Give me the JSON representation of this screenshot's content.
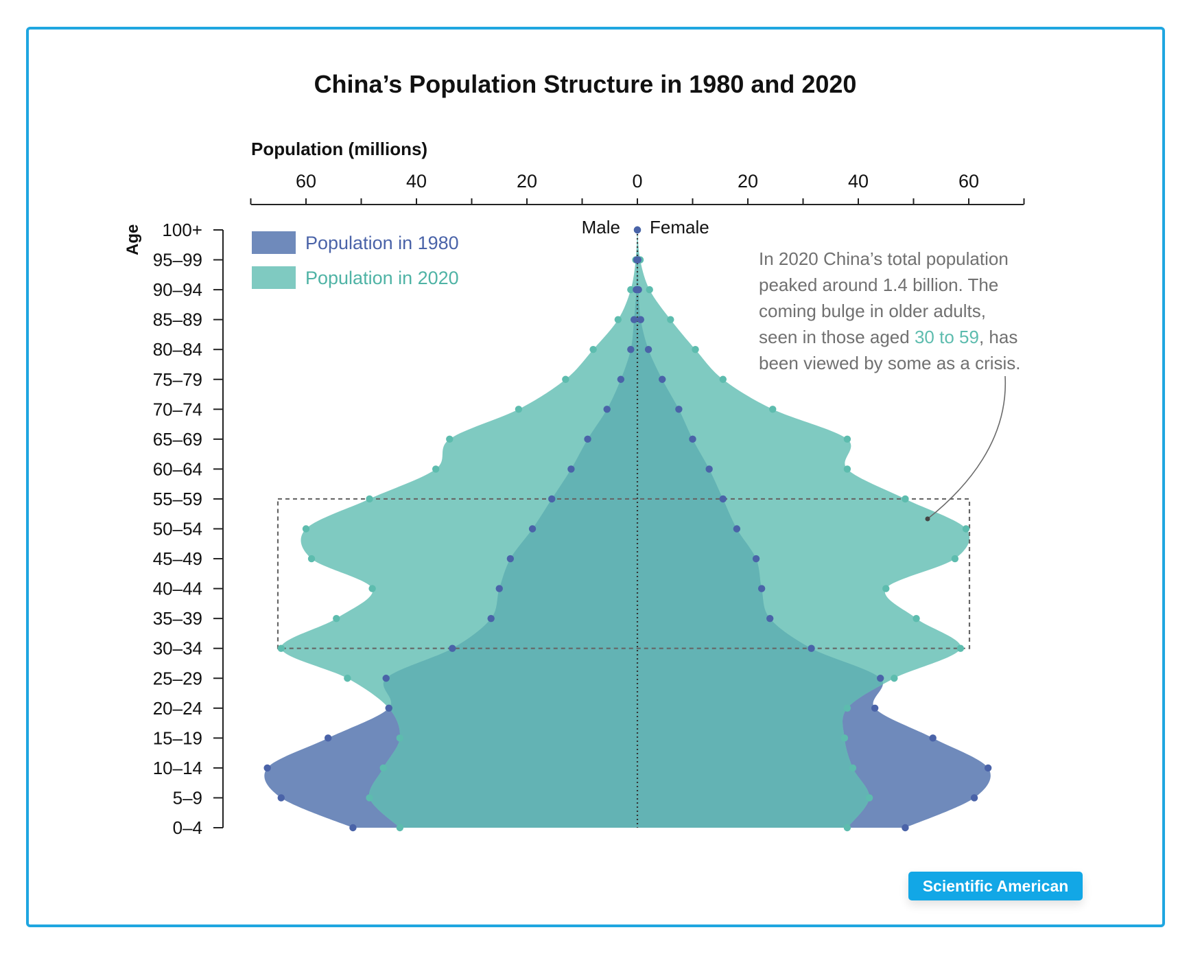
{
  "colors": {
    "frame": "#1fa6e0",
    "s1980": "#6f8abb",
    "s2020": "#7fcac1",
    "overlap": "#63b3b4",
    "dot1980": "#4a63a8",
    "dot2020": "#5dbcae",
    "badge": "#12a7e6",
    "note": "#707070",
    "highlight": "#5dbcae"
  },
  "chart_data": {
    "type": "area",
    "title": "China’s Population Structure in 1980 and 2020",
    "xlabel": "Population (millions)",
    "ylabel": "Age",
    "x_ticks": [
      "60",
      "40",
      "20",
      "0",
      "20",
      "40",
      "60"
    ],
    "xlim": [
      -70,
      70
    ],
    "side_labels": {
      "left": "Male",
      "right": "Female"
    },
    "categories": [
      "0–4",
      "5–9",
      "10–14",
      "15–19",
      "20–24",
      "25–29",
      "30–34",
      "35–39",
      "40–44",
      "45–49",
      "50–54",
      "55–59",
      "60–64",
      "65–69",
      "70–74",
      "75–79",
      "80–84",
      "85–89",
      "90–94",
      "95–99",
      "100+"
    ],
    "series": [
      {
        "name": "Population in 1980",
        "male": [
          51.5,
          64.5,
          67,
          56,
          45,
          45.5,
          33.5,
          26.5,
          25,
          23,
          19,
          15.5,
          12,
          9,
          5.5,
          3,
          1.2,
          0.6,
          0.2,
          0.1,
          0
        ],
        "female": [
          48.5,
          61,
          63.5,
          53.5,
          43,
          44,
          31.5,
          24,
          22.5,
          21.5,
          18,
          15.5,
          13,
          10,
          7.5,
          4.5,
          2,
          0.6,
          0.2,
          0.1,
          0
        ]
      },
      {
        "name": "Population in 2020",
        "male": [
          43,
          48.5,
          46,
          43,
          45,
          52.5,
          64.5,
          54.5,
          48,
          59,
          60,
          48.5,
          36.5,
          34,
          21.5,
          13,
          8,
          3.5,
          1.2,
          0.3,
          0
        ],
        "female": [
          38,
          42,
          39,
          37.5,
          38,
          46.5,
          58.5,
          50.5,
          45,
          57.5,
          59.5,
          48.5,
          38,
          38,
          24.5,
          15.5,
          10.5,
          6,
          2.2,
          0.5,
          0
        ]
      }
    ],
    "highlight_range": [
      "30–34",
      "55–59"
    ],
    "annotation": {
      "lines": [
        "In 2020 China’s total population",
        "peaked around 1.4 billion. The",
        "coming bulge in older adults,"
      ],
      "line4_before": "seen in those aged ",
      "line4_highlight": "30 to 59",
      "line4_after": ", has",
      "line5": "been viewed by some as a crisis."
    }
  },
  "source_badge": "Scientific American"
}
